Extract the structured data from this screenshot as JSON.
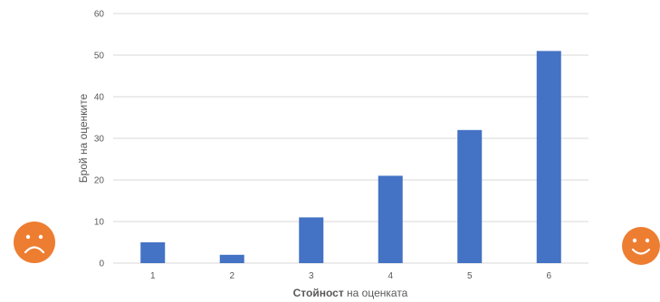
{
  "chart_data": {
    "type": "bar",
    "categories": [
      "1",
      "2",
      "3",
      "4",
      "5",
      "6"
    ],
    "values": [
      5,
      2,
      11,
      21,
      32,
      51
    ],
    "ylim": [
      0,
      60
    ],
    "y_ticks": [
      "0",
      "10",
      "20",
      "30",
      "40",
      "50",
      "60"
    ],
    "xlabel_bold": "Стойност",
    "xlabel_rest": "на оценката",
    "ylabel": "Брой на оценките",
    "grid": true,
    "legend": "none",
    "bar_color": "#4472C4",
    "grid_color": "#d9d9d9"
  },
  "decorations": {
    "left_icon": "sad-face-icon",
    "right_icon": "smiley-face-icon",
    "icon_color": "#ED7D31"
  }
}
